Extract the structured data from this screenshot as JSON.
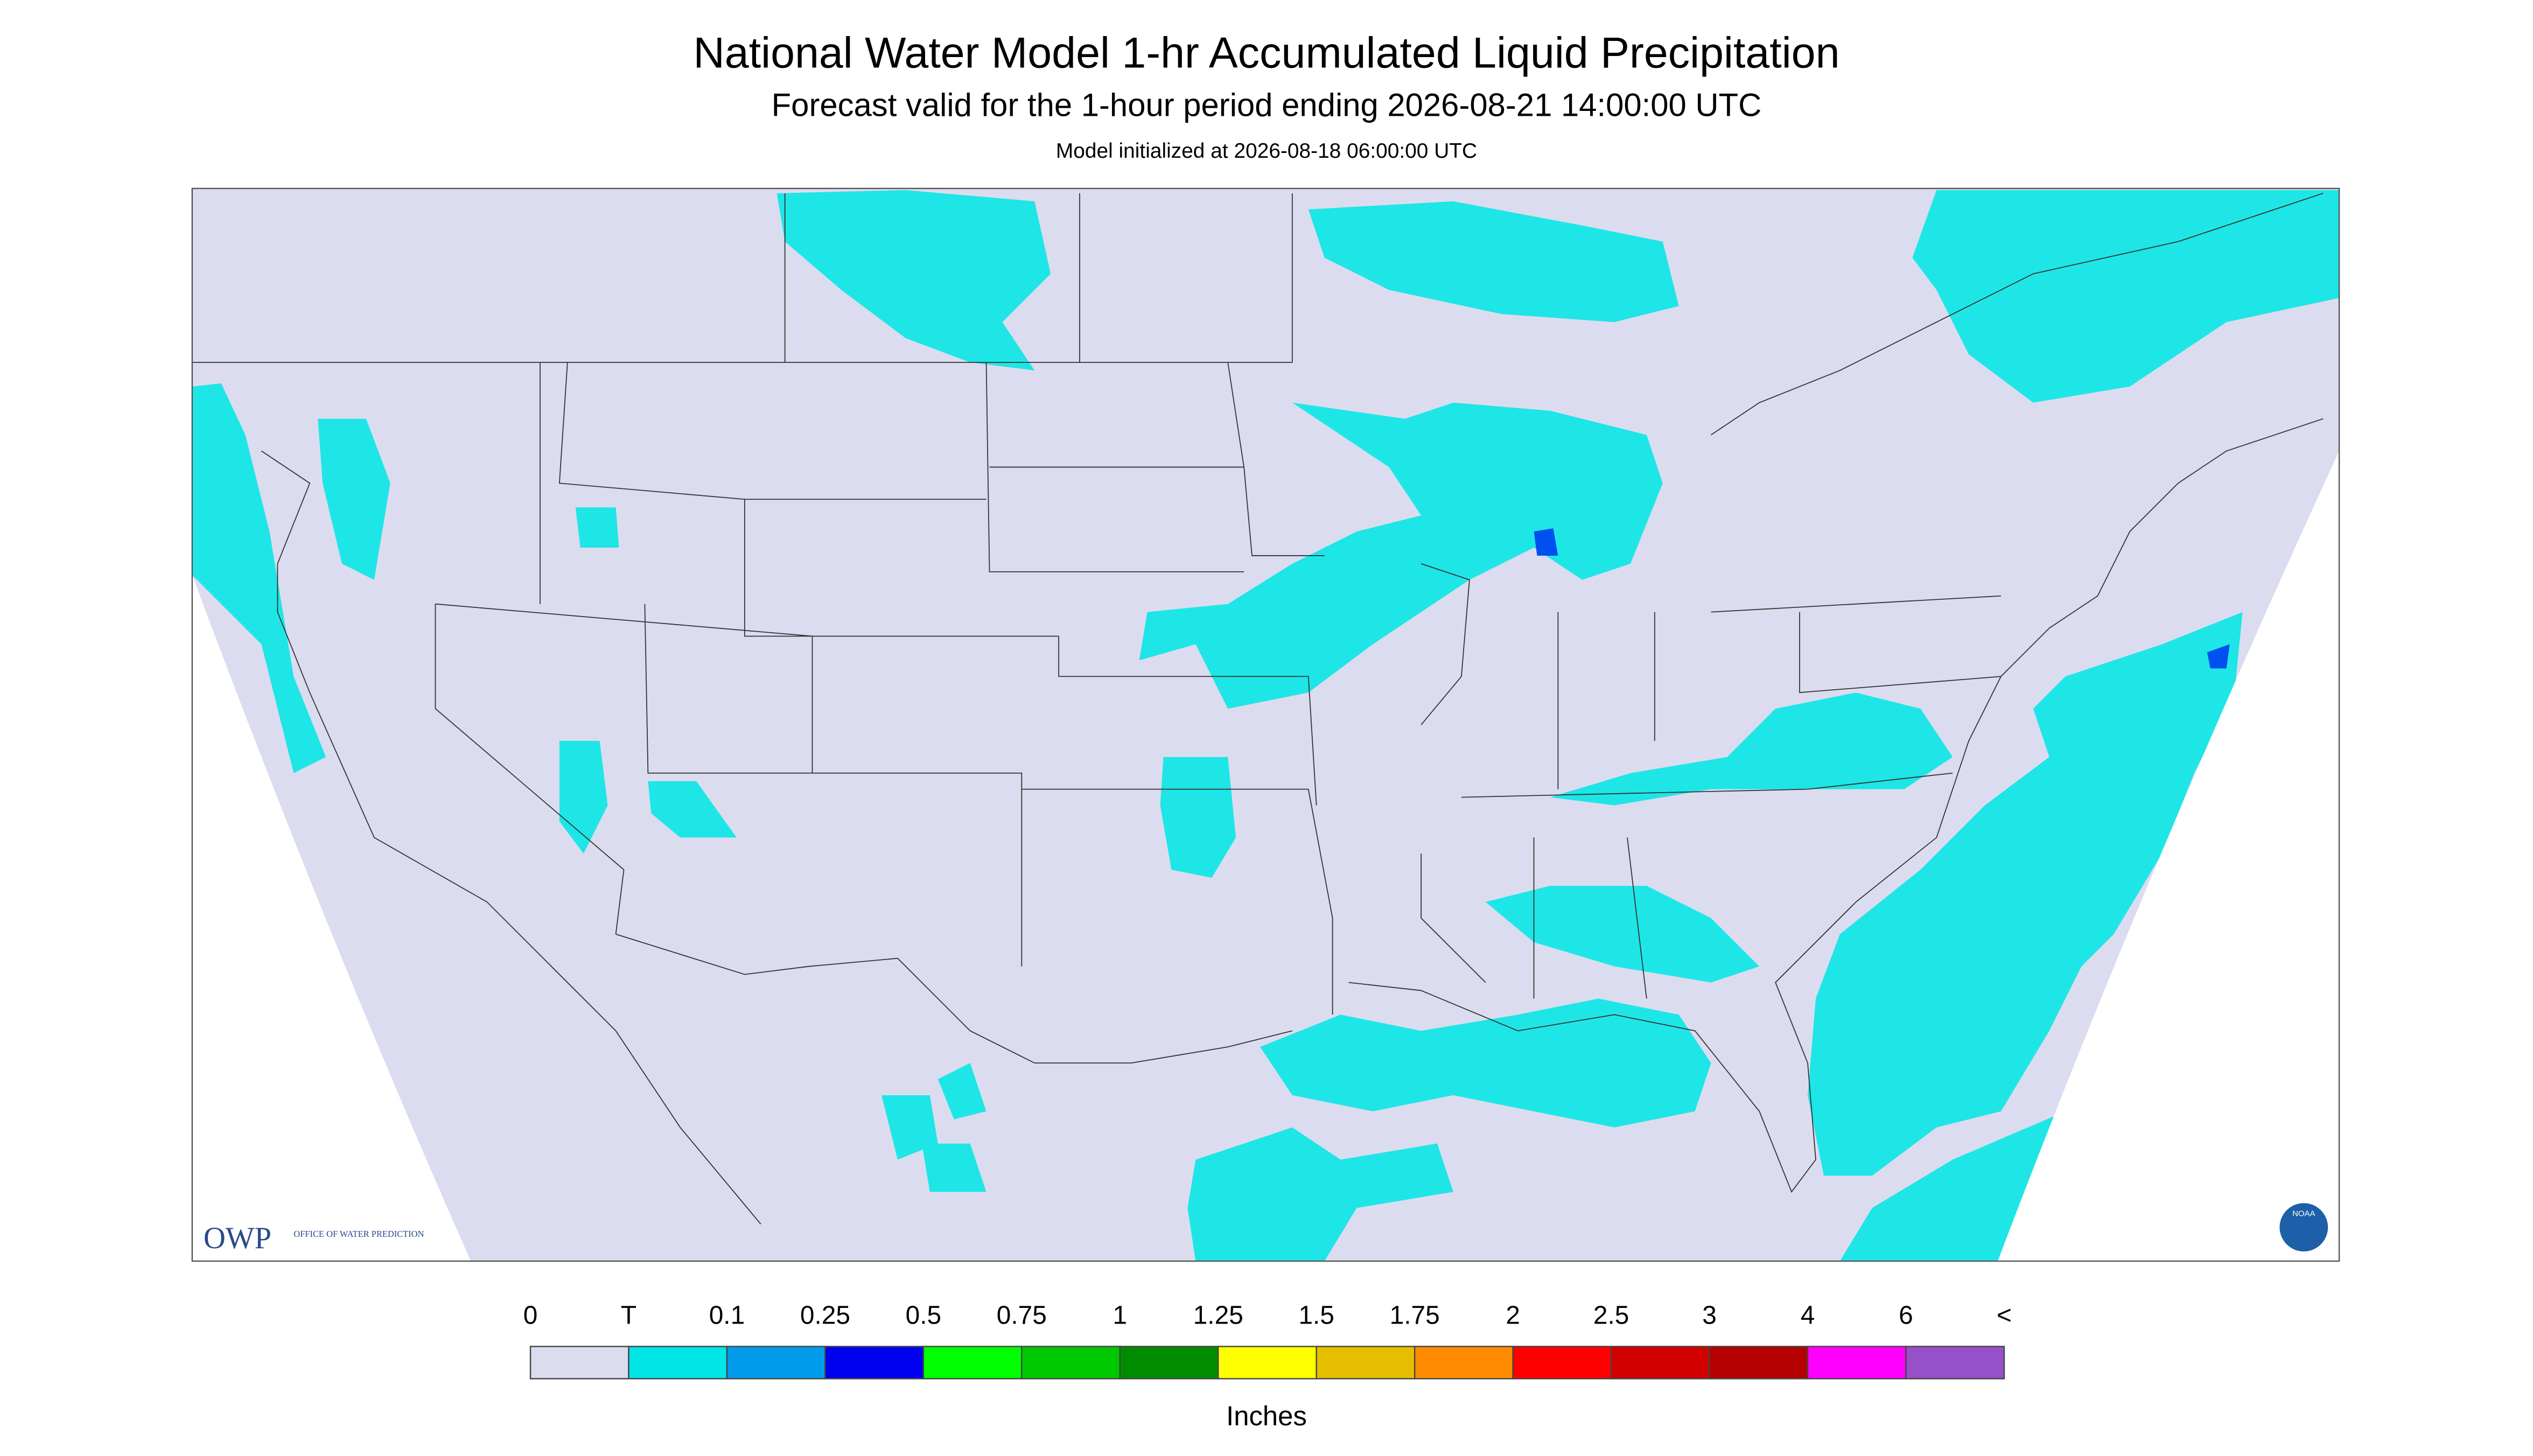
{
  "header": {
    "title": "National Water Model 1-hr Accumulated Liquid Precipitation",
    "subtitle": "Forecast valid for the 1-hour period ending 2026-08-21 14:00:00 UTC",
    "note": "Model initialized at 2026-08-18 06:00:00 UTC"
  },
  "logos": {
    "owp": "OWP",
    "owp_text": "OFFICE OF WATER PREDICTION",
    "noaa": "NOAA"
  },
  "legend": {
    "labels": [
      "0",
      "T",
      "0.1",
      "0.25",
      "0.5",
      "0.75",
      "1",
      "1.25",
      "1.5",
      "1.75",
      "2",
      "2.5",
      "3",
      "4",
      "6",
      "<"
    ],
    "colors": [
      "#dcdcf0",
      "#00e6e6",
      "#009ceb",
      "#0000f0",
      "#00ff00",
      "#00c800",
      "#008c00",
      "#ffff00",
      "#e6be00",
      "#ff8c00",
      "#ff0000",
      "#d20000",
      "#b40000",
      "#ff00ff",
      "#9650c8"
    ],
    "unit": "Inches"
  }
}
